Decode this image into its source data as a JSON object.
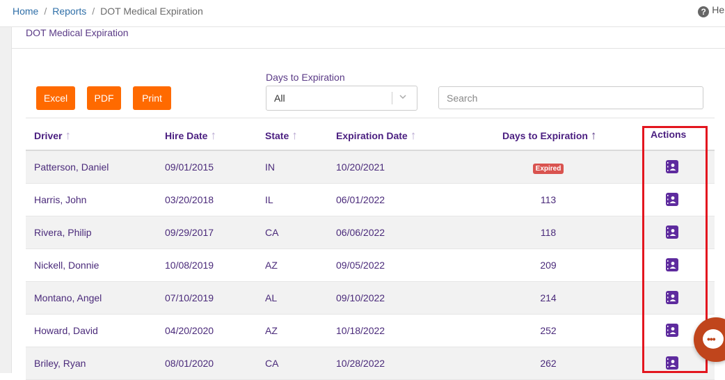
{
  "breadcrumb": {
    "home": "Home",
    "sep": "/",
    "reports": "Reports",
    "current": "DOT Medical Expiration"
  },
  "help": {
    "label": "Help"
  },
  "panel": {
    "title": "DOT Medical Expiration"
  },
  "toolbar": {
    "excel": "Excel",
    "pdf": "PDF",
    "print": "Print"
  },
  "filter": {
    "label": "Days to Expiration",
    "selected": "All"
  },
  "search": {
    "placeholder": "Search"
  },
  "table": {
    "headers": {
      "driver": "Driver",
      "hire_date": "Hire Date",
      "state": "State",
      "expiration_date": "Expiration Date",
      "days": "Days to Expiration",
      "actions": "Actions"
    },
    "rows": [
      {
        "driver": "Patterson, Daniel",
        "hire_date": "09/01/2015",
        "state": "IN",
        "expiration_date": "10/20/2021",
        "days": "Expired"
      },
      {
        "driver": "Harris, John",
        "hire_date": "03/20/2018",
        "state": "IL",
        "expiration_date": "06/01/2022",
        "days": "113"
      },
      {
        "driver": "Rivera, Philip",
        "hire_date": "09/29/2017",
        "state": "CA",
        "expiration_date": "06/06/2022",
        "days": "118"
      },
      {
        "driver": "Nickell, Donnie",
        "hire_date": "10/08/2019",
        "state": "AZ",
        "expiration_date": "09/05/2022",
        "days": "209"
      },
      {
        "driver": "Montano, Angel",
        "hire_date": "07/10/2019",
        "state": "AL",
        "expiration_date": "09/10/2022",
        "days": "214"
      },
      {
        "driver": "Howard, David",
        "hire_date": "04/20/2020",
        "state": "AZ",
        "expiration_date": "10/18/2022",
        "days": "252"
      },
      {
        "driver": "Briley, Ryan",
        "hire_date": "08/01/2020",
        "state": "CA",
        "expiration_date": "10/28/2022",
        "days": "262"
      }
    ]
  },
  "colors": {
    "accent": "#ff6a00",
    "primary": "#5e2b9e",
    "expired": "#d9534f",
    "highlight": "#e3161f"
  },
  "icons": {
    "sort": "arrow-up-icon",
    "action": "contact-card-icon",
    "chat": "chat-bubble-icon",
    "help": "question-circle-icon"
  }
}
